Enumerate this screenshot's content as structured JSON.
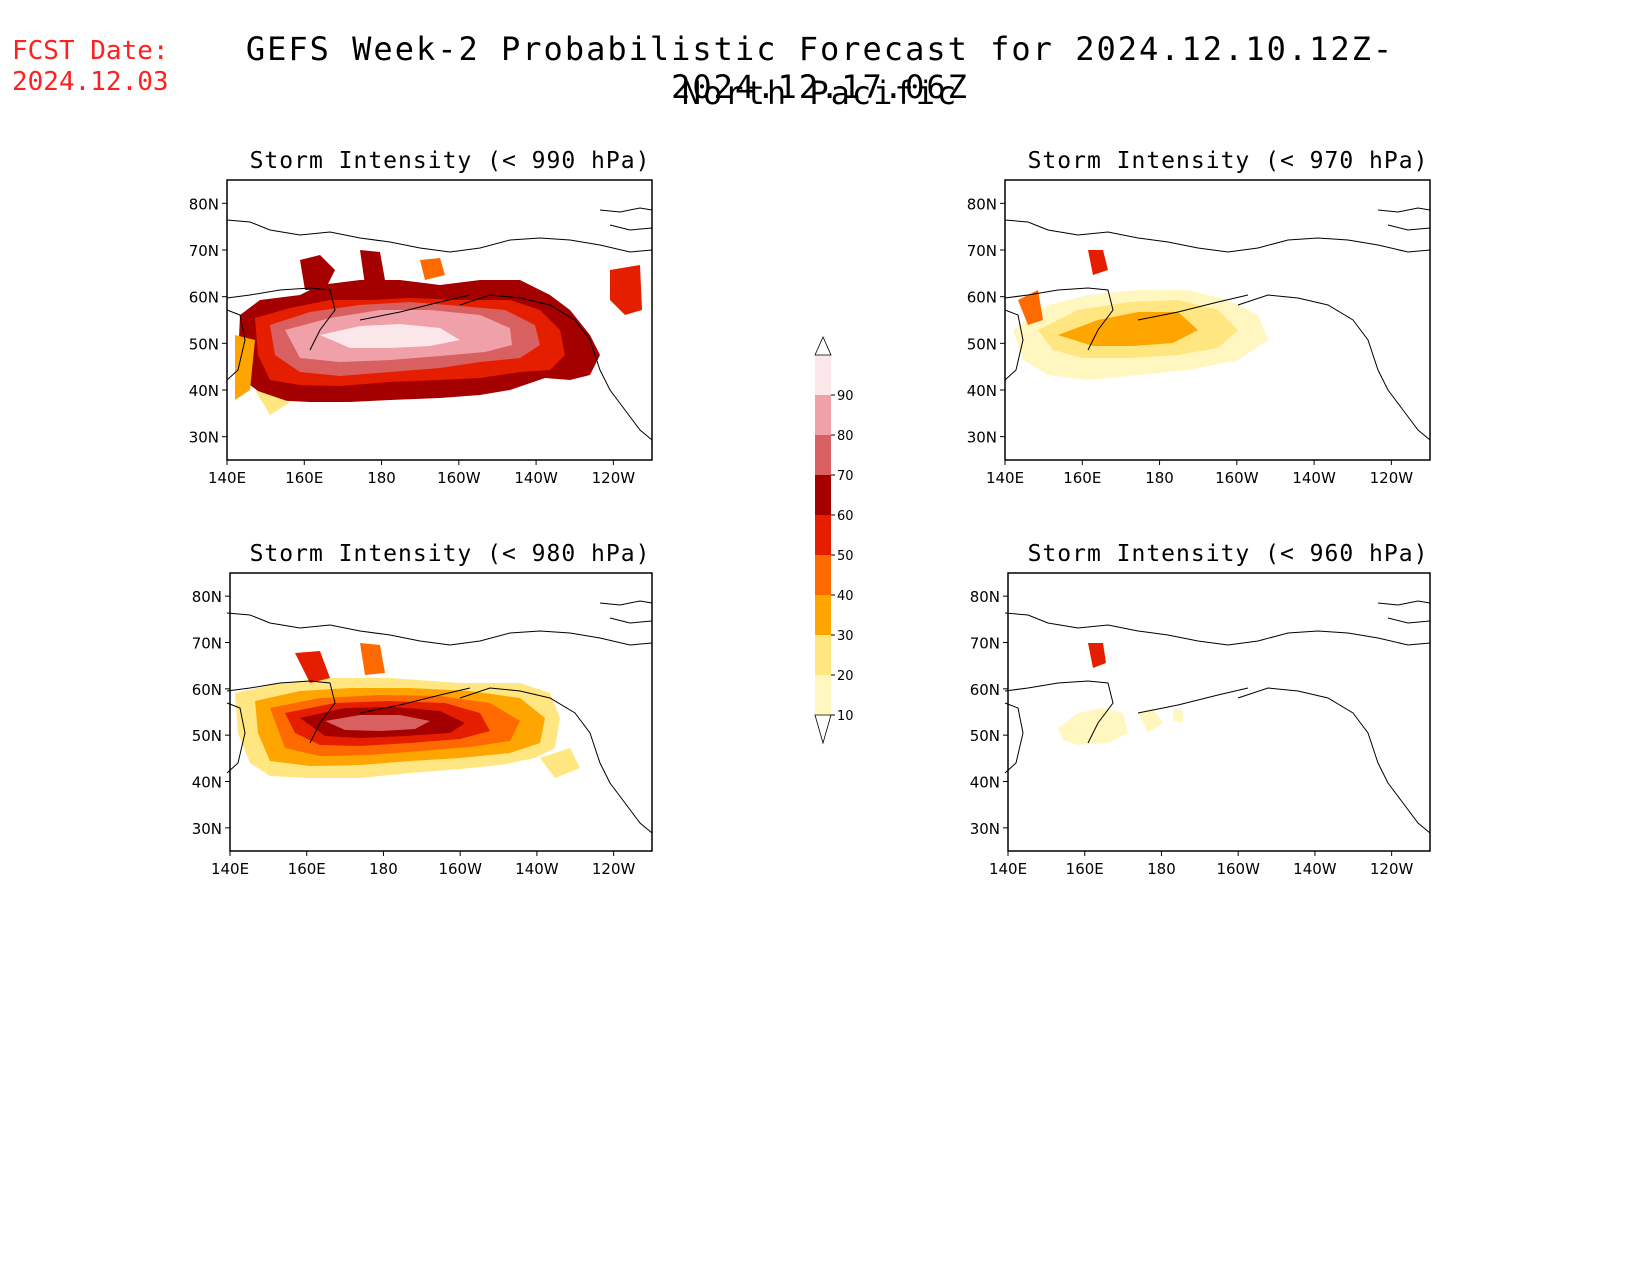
{
  "header": {
    "fcst_label": "FCST Date:",
    "fcst_date": "2024.12.03",
    "title": "GEFS Week-2 Probabilistic Forecast for 2024.12.10.12Z-2024.12.17.06Z",
    "subtitle": "North Pacific"
  },
  "axes": {
    "lat_ticks": [
      "80N",
      "70N",
      "60N",
      "50N",
      "40N",
      "30N"
    ],
    "lon_ticks": [
      "140E",
      "160E",
      "180",
      "160W",
      "140W",
      "120W"
    ]
  },
  "panels": [
    {
      "id": "p990",
      "title": "Storm Intensity (< 990 hPa)"
    },
    {
      "id": "p980",
      "title": "Storm Intensity (< 980 hPa)"
    },
    {
      "id": "p970",
      "title": "Storm Intensity (< 970 hPa)"
    },
    {
      "id": "p960",
      "title": "Storm Intensity (< 960 hPa)"
    }
  ],
  "colorbar": {
    "levels": [
      "10",
      "20",
      "30",
      "40",
      "50",
      "60",
      "70",
      "80",
      "90"
    ],
    "colors": [
      "#fff7bf",
      "#ffe680",
      "#ffa500",
      "#ff6a00",
      "#e61e00",
      "#a50000",
      "#d96060",
      "#f0a0a8",
      "#fbe6ea"
    ]
  }
}
